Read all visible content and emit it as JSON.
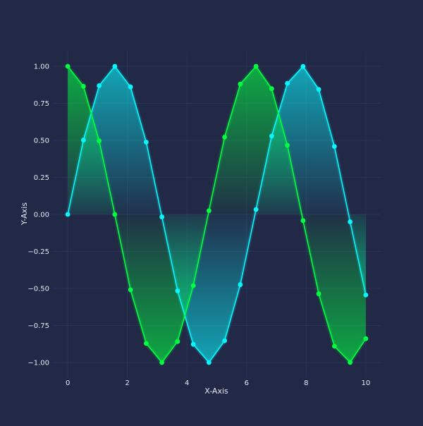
{
  "chart_data": {
    "type": "line",
    "title": "",
    "xlabel": "X-Axis",
    "ylabel": "Y-Axis",
    "xlim": [
      -0.5,
      10.5
    ],
    "ylim": [
      -1.1,
      1.1
    ],
    "x_ticks": [
      0,
      2,
      4,
      6,
      8,
      10
    ],
    "x_tick_labels": [
      "0",
      "2",
      "4",
      "6",
      "8",
      "10"
    ],
    "y_ticks": [
      1.0,
      0.75,
      0.5,
      0.25,
      0.0,
      -0.25,
      -0.5,
      -0.75,
      -1.0
    ],
    "y_tick_labels": [
      "1.00",
      "0.75",
      "0.50",
      "0.25",
      "0.00",
      "−0.25",
      "−0.50",
      "−0.75",
      "−1.00"
    ],
    "grid": true,
    "legend": "none",
    "x": [
      0,
      0.526,
      1.053,
      1.579,
      2.105,
      2.632,
      3.158,
      3.684,
      4.211,
      4.737,
      5.263,
      5.789,
      6.316,
      6.842,
      7.368,
      7.895,
      8.421,
      8.947,
      9.474,
      10
    ],
    "series": [
      {
        "color": "#08f7fe",
        "values": [
          0.0,
          0.502,
          0.869,
          1.0,
          0.861,
          0.488,
          -0.017,
          -0.516,
          -0.877,
          -1.0,
          -0.853,
          -0.474,
          0.033,
          0.529,
          0.885,
          0.999,
          0.844,
          0.459,
          -0.05,
          -0.544
        ]
      },
      {
        "color": "#00ff41",
        "values": [
          1.0,
          0.865,
          0.497,
          0.0,
          -0.509,
          -0.871,
          -1.0,
          -0.858,
          -0.481,
          0.025,
          0.522,
          0.88,
          1.0,
          0.849,
          0.467,
          -0.042,
          -0.536,
          -0.89,
          -0.999,
          -0.839
        ]
      }
    ]
  }
}
